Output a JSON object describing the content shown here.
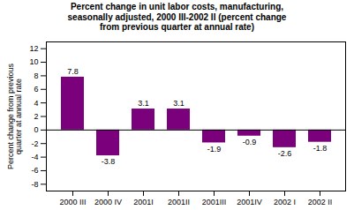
{
  "chart_data": {
    "type": "bar",
    "title": "Percent change in unit labor costs, manufacturing,\nseasonally adjusted, 2000 III-2002 II (percent change\nfrom previous quarter at annual rate)",
    "ylabel": "Percent change from previous\nquarter at annual rate",
    "categories": [
      "2000 III",
      "2000 IV",
      "2001I",
      "2001II",
      "2001III",
      "2001IV",
      "2002 I",
      "2002 II"
    ],
    "values": [
      7.8,
      -3.8,
      3.1,
      3.1,
      -1.9,
      -0.9,
      -2.6,
      -1.8
    ],
    "color": "#7b007b",
    "ylim": [
      -9,
      13
    ],
    "yticks": [
      -8,
      -6,
      -4,
      -2,
      0,
      2,
      4,
      6,
      8,
      10,
      12
    ],
    "grid": false,
    "data_labels": true
  }
}
